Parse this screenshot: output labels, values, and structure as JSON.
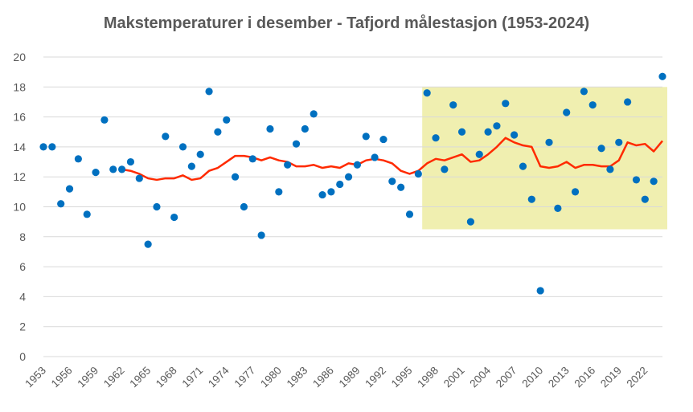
{
  "chart_data": {
    "type": "scatter",
    "title": "Makstemperaturer i desember - Tafjord målestasjon (1953-2024)",
    "xlabel": "",
    "ylabel": "",
    "xlim": [
      1953,
      2024
    ],
    "ylim": [
      0,
      20
    ],
    "yticks": [
      0,
      2,
      4,
      6,
      8,
      10,
      12,
      14,
      16,
      18,
      20
    ],
    "xticks": [
      1953,
      1956,
      1959,
      1962,
      1965,
      1968,
      1971,
      1974,
      1977,
      1980,
      1983,
      1986,
      1989,
      1992,
      1995,
      1998,
      2001,
      2004,
      2007,
      2010,
      2013,
      2016,
      2019,
      2022
    ],
    "grid": "horizontal",
    "legend": "none",
    "highlight": {
      "x_start": 1997,
      "x_end": 2024,
      "y_start": 8.5,
      "y_end": 18,
      "color": "#f0efb0"
    },
    "series": [
      {
        "kind": "points",
        "color": "#0070c0",
        "x": [
          1953,
          1954,
          1955,
          1956,
          1957,
          1958,
          1959,
          1960,
          1961,
          1962,
          1963,
          1964,
          1965,
          1966,
          1967,
          1968,
          1969,
          1970,
          1971,
          1972,
          1973,
          1974,
          1975,
          1976,
          1977,
          1978,
          1979,
          1980,
          1981,
          1982,
          1983,
          1984,
          1985,
          1986,
          1987,
          1988,
          1989,
          1990,
          1991,
          1992,
          1993,
          1994,
          1995,
          1996,
          1997,
          1998,
          1999,
          2000,
          2001,
          2002,
          2003,
          2004,
          2005,
          2006,
          2007,
          2008,
          2009,
          2010,
          2011,
          2012,
          2013,
          2014,
          2015,
          2016,
          2017,
          2018,
          2019,
          2020,
          2021,
          2022,
          2023,
          2024
        ],
        "y": [
          14.0,
          14.0,
          10.2,
          11.2,
          13.2,
          9.5,
          12.3,
          15.8,
          12.5,
          12.5,
          13.0,
          11.9,
          7.5,
          10.0,
          14.7,
          9.3,
          14.0,
          12.7,
          13.5,
          17.7,
          15.0,
          15.8,
          12.0,
          10.0,
          13.2,
          8.1,
          15.2,
          11.0,
          12.8,
          14.2,
          15.2,
          16.2,
          10.8,
          11.0,
          11.5,
          12.0,
          12.8,
          14.7,
          13.3,
          14.5,
          11.7,
          11.3,
          9.5,
          12.2,
          17.6,
          14.6,
          12.5,
          16.8,
          15.0,
          9.0,
          13.5,
          15.0,
          15.4,
          16.9,
          14.8,
          12.7,
          10.5,
          4.4,
          14.3,
          9.9,
          16.3,
          11.0,
          17.7,
          16.8,
          13.9,
          12.5,
          14.3,
          17.0,
          11.8,
          10.5,
          11.7,
          18.7
        ]
      },
      {
        "kind": "line",
        "color": "#ff2a00",
        "x": [
          1962,
          1963,
          1964,
          1965,
          1966,
          1967,
          1968,
          1969,
          1970,
          1971,
          1972,
          1973,
          1974,
          1975,
          1976,
          1977,
          1978,
          1979,
          1980,
          1981,
          1982,
          1983,
          1984,
          1985,
          1986,
          1987,
          1988,
          1989,
          1990,
          1991,
          1992,
          1993,
          1994,
          1995,
          1996,
          1997,
          1998,
          1999,
          2000,
          2001,
          2002,
          2003,
          2004,
          2005,
          2006,
          2007,
          2008,
          2009,
          2010,
          2011,
          2012,
          2013,
          2014,
          2015,
          2016,
          2017,
          2018,
          2019,
          2020,
          2021,
          2022,
          2023,
          2024
        ],
        "y": [
          12.5,
          12.4,
          12.2,
          11.9,
          11.8,
          11.9,
          11.9,
          12.1,
          11.8,
          11.9,
          12.4,
          12.6,
          13.0,
          13.4,
          13.4,
          13.3,
          13.1,
          13.3,
          13.1,
          13.0,
          12.7,
          12.7,
          12.8,
          12.6,
          12.7,
          12.6,
          12.9,
          12.8,
          13.1,
          13.2,
          13.1,
          12.9,
          12.4,
          12.2,
          12.4,
          12.9,
          13.2,
          13.1,
          13.3,
          13.5,
          13.0,
          13.1,
          13.5,
          14.0,
          14.6,
          14.3,
          14.1,
          14.0,
          12.7,
          12.6,
          12.7,
          13.0,
          12.6,
          12.8,
          12.8,
          12.7,
          12.7,
          13.1,
          14.3,
          14.1,
          14.2,
          13.7,
          14.4
        ]
      }
    ]
  }
}
